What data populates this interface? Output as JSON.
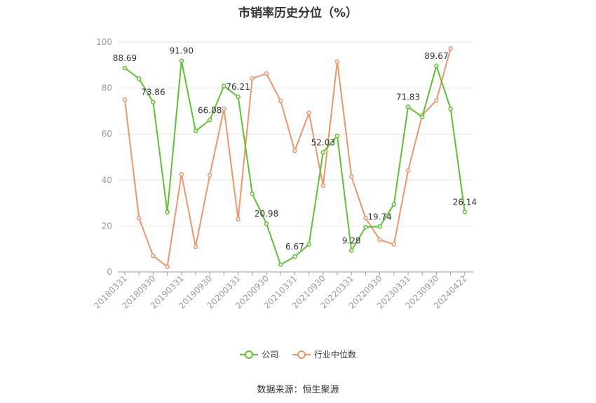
{
  "chart_data": {
    "type": "line",
    "title": "市销率历史分位（%）",
    "x": [
      "20180331",
      "20180630",
      "20180930",
      "20181231",
      "20190331",
      "20190630",
      "20190930",
      "20191231",
      "20200331",
      "20200630",
      "20200930",
      "20201231",
      "20210331",
      "20210630",
      "20210930",
      "20211231",
      "20220331",
      "20220630",
      "20220930",
      "20221231",
      "20230331",
      "20230630",
      "20230930",
      "20231231",
      "20240422"
    ],
    "x_tick_labels": [
      "20180331",
      "20180930",
      "20190331",
      "20190930",
      "20200331",
      "20200930",
      "20210331",
      "20210930",
      "20220331",
      "20220930",
      "20230331",
      "20230930",
      "20240422"
    ],
    "ylim": [
      0,
      100
    ],
    "y_ticks": [
      0,
      20,
      40,
      60,
      80,
      100
    ],
    "grid": true,
    "legend_position": "bottom",
    "series": [
      {
        "name": "公司",
        "color": "#5cc330",
        "values": [
          88.69,
          84.1,
          73.86,
          26.0,
          91.9,
          61.3,
          66.08,
          80.9,
          76.21,
          34.0,
          20.98,
          3.2,
          6.67,
          12.0,
          52.03,
          59.2,
          9.28,
          19.5,
          19.74,
          29.4,
          71.83,
          67.4,
          89.67,
          71.0,
          26.14
        ],
        "labels": [
          "88.69",
          null,
          "73.86",
          null,
          "91.90",
          null,
          "66.08",
          null,
          "76.21",
          null,
          "20.98",
          null,
          "6.67",
          null,
          "52.03",
          null,
          "9.28",
          null,
          "19.74",
          null,
          "71.83",
          null,
          "89.67",
          null,
          "26.14"
        ]
      },
      {
        "name": "行业中位数",
        "color": "#f29468",
        "values": [
          75.0,
          23.5,
          7.0,
          2.3,
          42.5,
          11.0,
          42.0,
          71.0,
          23.0,
          84.2,
          86.3,
          74.4,
          52.7,
          69.2,
          37.5,
          91.5,
          41.5,
          23.4,
          14.0,
          12.0,
          44.0,
          68.2,
          74.6,
          97.2,
          null
        ]
      }
    ]
  },
  "source": "数据来源：恒生聚源"
}
